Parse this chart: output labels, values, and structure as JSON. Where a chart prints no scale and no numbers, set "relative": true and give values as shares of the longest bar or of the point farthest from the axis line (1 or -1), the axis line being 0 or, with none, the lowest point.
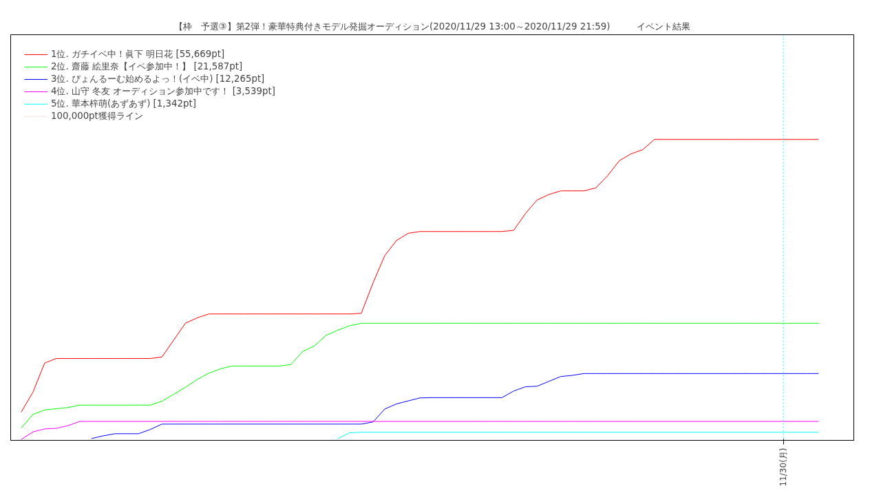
{
  "chart_data": {
    "type": "line",
    "title": "【枠　予選③】第2弾！豪華特典付きモデル発掘オーディション(2020/11/29 13:00～2020/11/29 21:59)　　　イベント結果",
    "relative": true,
    "legend": "top left",
    "line_style": "solid",
    "categories": [
      null,
      null,
      null,
      null,
      null,
      null,
      null,
      null,
      null,
      null,
      null,
      null,
      null,
      null,
      null,
      null,
      null,
      null,
      null,
      null,
      null,
      null,
      null,
      null,
      null,
      null,
      null,
      null,
      null,
      null,
      null,
      null,
      null,
      null,
      null,
      null,
      null,
      null,
      null,
      null,
      null,
      null,
      null,
      null,
      null,
      null,
      null,
      null,
      null,
      null,
      null,
      null,
      null,
      null,
      null,
      null,
      null,
      null,
      null,
      null,
      null,
      null,
      null,
      null,
      null,
      null,
      null,
      null,
      null
    ],
    "annotations": [
      "11/30(月)"
    ],
    "series": [
      {
        "name": "1位. ガチイベ中！眞下 明日花 [55,669pt]",
        "color": "#ff0000",
        "values": [
          0.094,
          0.16,
          0.257,
          0.272,
          0.272,
          0.272,
          0.272,
          0.272,
          0.272,
          0.272,
          0.272,
          0.272,
          0.277,
          0.333,
          0.389,
          0.407,
          0.42,
          0.42,
          0.42,
          0.42,
          0.42,
          0.42,
          0.42,
          0.42,
          0.42,
          0.42,
          0.42,
          0.42,
          0.42,
          0.422,
          0.523,
          0.614,
          0.664,
          0.688,
          0.694,
          0.694,
          0.694,
          0.694,
          0.694,
          0.694,
          0.694,
          0.694,
          0.698,
          0.754,
          0.799,
          0.817,
          0.829,
          0.829,
          0.829,
          0.839,
          0.879,
          0.929,
          0.952,
          0.966,
          1.0,
          1.0,
          1.0,
          1.0,
          1.0,
          1.0,
          1.0,
          1.0,
          1.0,
          1.0,
          1.0,
          1.0,
          1.0,
          1.0,
          1.0
        ]
      },
      {
        "name": "2位. 齋藤 絵里奈【イベ参加中！】 [21,587pt]",
        "color": "#00ff00",
        "values": [
          0.041,
          0.086,
          0.101,
          0.105,
          0.109,
          0.117,
          0.117,
          0.117,
          0.117,
          0.117,
          0.117,
          0.117,
          0.13,
          0.153,
          0.176,
          0.202,
          0.223,
          0.238,
          0.247,
          0.247,
          0.247,
          0.247,
          0.247,
          0.252,
          0.295,
          0.314,
          0.349,
          0.366,
          0.381,
          0.389,
          0.389,
          0.389,
          0.389,
          0.389,
          0.389,
          0.389,
          0.389,
          0.389,
          0.389,
          0.389,
          0.389,
          0.389,
          0.389,
          0.389,
          0.389,
          0.389,
          0.389,
          0.389,
          0.389,
          0.389,
          0.389,
          0.389,
          0.389,
          0.389,
          0.389,
          0.389,
          0.389,
          0.389,
          0.389,
          0.389,
          0.389,
          0.389,
          0.389,
          0.389,
          0.389,
          0.389,
          0.389,
          0.389,
          0.389
        ]
      },
      {
        "name": "3位. ぴょんるーむ始めるよっ！(イベ中) [12,265pt]",
        "color": "#0000ff",
        "values": [
          null,
          null,
          null,
          null,
          null,
          null,
          0.006,
          0.015,
          0.022,
          0.022,
          0.022,
          0.036,
          0.054,
          0.054,
          0.054,
          0.054,
          0.054,
          0.054,
          0.054,
          0.054,
          0.054,
          0.054,
          0.054,
          0.054,
          0.054,
          0.054,
          0.054,
          0.054,
          0.054,
          0.054,
          0.061,
          0.104,
          0.121,
          0.131,
          0.141,
          0.142,
          0.142,
          0.142,
          0.142,
          0.142,
          0.142,
          0.142,
          0.164,
          0.178,
          0.18,
          0.196,
          0.212,
          0.216,
          0.222,
          0.222,
          0.222,
          0.222,
          0.222,
          0.222,
          0.222,
          0.222,
          0.222,
          0.222,
          0.222,
          0.222,
          0.222,
          0.222,
          0.222,
          0.222,
          0.222,
          0.222,
          0.222,
          0.222,
          0.222
        ]
      },
      {
        "name": "4位. 山守 冬友 オーディション参加中です！ [3,539pt]",
        "color": "#ff00ff",
        "values": [
          0.003,
          0.028,
          0.038,
          0.04,
          0.049,
          0.063,
          0.063,
          0.063,
          0.063,
          0.063,
          0.063,
          0.063,
          0.063,
          0.063,
          0.063,
          0.063,
          0.063,
          0.063,
          0.063,
          0.063,
          0.063,
          0.063,
          0.063,
          0.063,
          0.063,
          0.063,
          0.063,
          0.063,
          0.063,
          0.063,
          0.063,
          0.063,
          0.063,
          0.063,
          0.063,
          0.063,
          0.063,
          0.063,
          0.063,
          0.063,
          0.063,
          0.063,
          0.063,
          0.063,
          0.063,
          0.063,
          0.063,
          0.063,
          0.063,
          0.063,
          0.063,
          0.063,
          0.063,
          0.063,
          0.063,
          0.063,
          0.063,
          0.063,
          0.063,
          0.063,
          0.063,
          0.063,
          0.063,
          0.063,
          0.063,
          0.063,
          0.063,
          0.063,
          0.063
        ]
      },
      {
        "name": "5位. 華本梓萌(あずあず) [1,342pt]",
        "color": "#00ffff",
        "values": [
          null,
          null,
          null,
          null,
          null,
          null,
          null,
          null,
          null,
          null,
          null,
          null,
          null,
          null,
          null,
          null,
          null,
          null,
          null,
          null,
          null,
          null,
          null,
          null,
          null,
          null,
          null,
          0.006,
          0.025,
          0.027,
          0.027,
          0.027,
          0.027,
          0.027,
          0.027,
          0.027,
          0.027,
          0.027,
          0.027,
          0.027,
          0.027,
          0.027,
          0.027,
          0.027,
          0.027,
          0.027,
          0.027,
          0.027,
          0.027,
          0.027,
          0.027,
          0.027,
          0.027,
          0.027,
          0.027,
          0.027,
          0.027,
          0.027,
          0.027,
          0.027,
          0.027,
          0.027,
          0.027,
          0.027,
          0.027,
          0.027,
          0.027,
          0.027,
          0.027
        ]
      },
      {
        "name": "100,000pt獲得ライン",
        "color": "#ffaaaa",
        "line_style": "dotted",
        "values": [
          null,
          null,
          null,
          null,
          null,
          null,
          null,
          null,
          null,
          null,
          null,
          null,
          null,
          null,
          null,
          null,
          null,
          null,
          null,
          null,
          null,
          null,
          null,
          null,
          null,
          null,
          null,
          null,
          null,
          null,
          null,
          null,
          null,
          null,
          null,
          null,
          null,
          null,
          null,
          null,
          null,
          null,
          null,
          null,
          null,
          null,
          null,
          null,
          null,
          null,
          null,
          null,
          null,
          null,
          null,
          null,
          null,
          null,
          null,
          null,
          null,
          null,
          null,
          null,
          null,
          null,
          null,
          null,
          null
        ]
      }
    ]
  }
}
